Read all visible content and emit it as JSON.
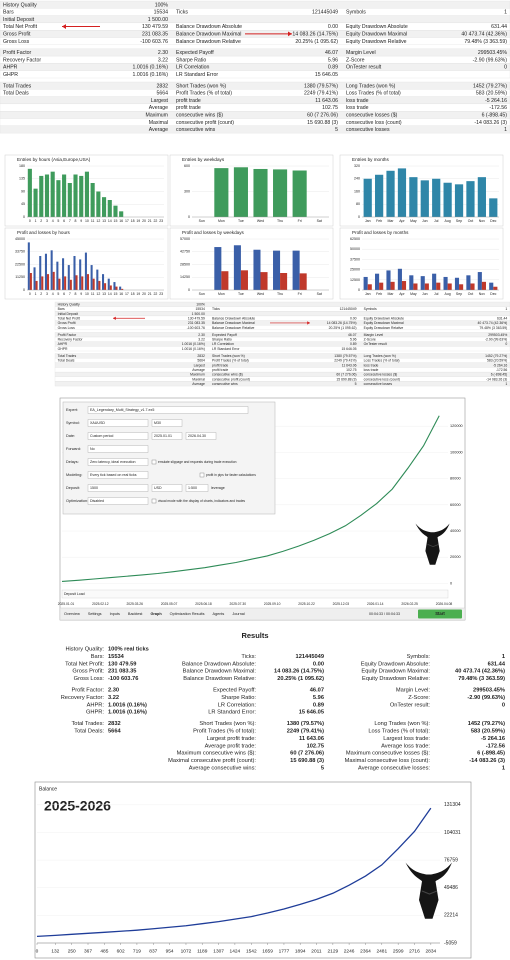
{
  "report": {
    "sections": [
      [
        [
          "History Quality",
          "100%",
          null,
          null,
          null,
          null
        ],
        [
          "Bars",
          "15534",
          "Ticks",
          "121445049",
          "Symbols",
          "1"
        ],
        [
          "Initial Deposit",
          "1 500.00",
          null,
          null,
          null,
          null
        ],
        [
          "Total Net Profit",
          "130 479.59",
          "Balance Drawdown Absolute",
          "0.00",
          "Equity Drawdown Absolute",
          "631.44"
        ],
        [
          "Gross Profit",
          "231 083.35",
          "Balance Drawdown Maximal",
          "14 083.26 (14.75%)",
          "Equity Drawdown Maximal",
          "40 473.74 (42.36%)"
        ],
        [
          "Gross Loss",
          "-100 603.76",
          "Balance Drawdown Relative",
          "20.25% (1 095.62)",
          "Equity Drawdown Relative",
          "79.48% (3 363.59)"
        ]
      ],
      [
        [
          "Profit Factor",
          "2.30",
          "Expected Payoff",
          "46.07",
          "Margin Level",
          "299503.45%"
        ],
        [
          "Recovery Factor",
          "3.22",
          "Sharpe Ratio",
          "5.96",
          "Z-Score",
          "-2.90 (99.63%)"
        ],
        [
          "AHPR",
          "1.0016 (0.16%)",
          "LR Correlation",
          "0.89",
          "OnTester result",
          "0"
        ],
        [
          "GHPR",
          "1.0016 (0.16%)",
          "LR Standard Error",
          "15 646.05",
          null,
          null
        ]
      ],
      [
        [
          "Total Trades",
          "2832",
          "Short Trades (won %)",
          "1380 (79.57%)",
          "Long Trades (won %)",
          "1452 (79.27%)"
        ],
        [
          "Total Deals",
          "5664",
          "Profit Trades (% of total)",
          "2249 (79.41%)",
          "Loss Trades (% of total)",
          "583 (20.59%)"
        ],
        [
          null,
          "Largest",
          "profit trade",
          "11 643.06",
          "loss trade",
          "-5 264.16"
        ],
        [
          null,
          "Average",
          "profit trade",
          "102.75",
          "loss trade",
          "-172.56"
        ],
        [
          null,
          "Maximum",
          "consecutive wins ($)",
          "60 (7 276.06)",
          "consecutive losses ($)",
          "6 (-898.45)"
        ],
        [
          null,
          "Maximal",
          "consecutive profit (count)",
          "15 690.88 (3)",
          "consecutive loss (count)",
          "-14 083.26 (3)"
        ],
        [
          null,
          "Average",
          "consecutive wins",
          "5",
          "consecutive losses",
          "1"
        ]
      ]
    ]
  },
  "charts": [
    {
      "type": "bar",
      "title": "Entries by hours (Asia,Europe,USA)",
      "categories": [
        0,
        1,
        2,
        3,
        4,
        5,
        6,
        7,
        8,
        9,
        10,
        11,
        12,
        13,
        14,
        15,
        16,
        17,
        18,
        19,
        20,
        21,
        22,
        23
      ],
      "series": [
        {
          "color": "#3f9b5c",
          "values": [
            170,
            100,
            145,
            150,
            160,
            130,
            150,
            120,
            150,
            145,
            160,
            120,
            90,
            70,
            60,
            40,
            20,
            0,
            0,
            0,
            0,
            0,
            0,
            0
          ]
        }
      ],
      "ylim": [
        0,
        180
      ],
      "yticks": [
        0,
        45,
        90,
        135,
        180
      ]
    },
    {
      "type": "bar",
      "title": "Entries by weekdays",
      "categories": [
        "Sun",
        "Mon",
        "Tue",
        "Wed",
        "Thu",
        "Fri",
        "Sat"
      ],
      "series": [
        {
          "color": "#3f9b5c",
          "values": [
            0,
            575,
            585,
            565,
            560,
            547,
            0
          ]
        }
      ],
      "ylim": [
        0,
        600
      ],
      "yticks": [
        0,
        300,
        600
      ]
    },
    {
      "type": "bar",
      "title": "Entries by months",
      "categories": [
        "Jan",
        "Feb",
        "Mar",
        "Apr",
        "May",
        "Jun",
        "Jul",
        "Aug",
        "Sep",
        "Oct",
        "Nov",
        "Dec"
      ],
      "series": [
        {
          "color": "#2f86a8",
          "values": [
            240,
            265,
            290,
            305,
            250,
            230,
            240,
            215,
            205,
            225,
            250,
            117
          ]
        }
      ],
      "ylim": [
        0,
        320
      ],
      "yticks": [
        0,
        80,
        160,
        240,
        320
      ]
    },
    {
      "type": "bar",
      "title": "Profit and losses by hours",
      "categories": [
        0,
        1,
        2,
        3,
        4,
        5,
        6,
        7,
        8,
        9,
        10,
        11,
        12,
        13,
        14,
        15,
        16,
        17,
        18,
        19,
        20,
        21,
        22,
        23
      ],
      "series": [
        {
          "color": "#3a5fa8",
          "values": [
            42000,
            20000,
            30000,
            32000,
            35000,
            25000,
            28000,
            22000,
            30000,
            27000,
            33000,
            22000,
            18000,
            14000,
            10000,
            7000,
            3000,
            0,
            0,
            0,
            0,
            0,
            0,
            0
          ]
        },
        {
          "color": "#c0392b",
          "values": [
            15000,
            8000,
            12000,
            14000,
            16000,
            10000,
            12000,
            9000,
            13000,
            12000,
            14000,
            10000,
            8000,
            6000,
            4000,
            3000,
            1000,
            0,
            0,
            0,
            0,
            0,
            0,
            0
          ]
        }
      ],
      "ylim": [
        0,
        45000
      ],
      "yticks": [
        0,
        11250,
        22500,
        33750,
        45000
      ]
    },
    {
      "type": "bar",
      "title": "Profit and losses by weekdays",
      "categories": [
        "Sun",
        "Mon",
        "Tue",
        "Wed",
        "Thu",
        "Fri",
        "Sat"
      ],
      "series": [
        {
          "color": "#3a5fa8",
          "values": [
            0,
            48000,
            50000,
            45000,
            44000,
            44000,
            0
          ]
        },
        {
          "color": "#c0392b",
          "values": [
            0,
            21000,
            22000,
            20000,
            19000,
            18600,
            0
          ]
        }
      ],
      "ylim": [
        0,
        57000
      ],
      "yticks": [
        0,
        14250,
        28500,
        42750,
        57000
      ]
    },
    {
      "type": "bar",
      "title": "Profit and losses by months",
      "categories": [
        "Jan",
        "Feb",
        "Mar",
        "Apr",
        "May",
        "Jun",
        "Jul",
        "Aug",
        "Sep",
        "Oct",
        "Nov",
        "Dec"
      ],
      "series": [
        {
          "color": "#3a5fa8",
          "values": [
            16000,
            20000,
            24000,
            26000,
            18000,
            17000,
            20000,
            16000,
            15000,
            18000,
            22000,
            9000
          ]
        },
        {
          "color": "#c0392b",
          "values": [
            7000,
            9000,
            10000,
            11000,
            8000,
            8000,
            9000,
            8000,
            7000,
            8000,
            10000,
            4000
          ]
        }
      ],
      "ylim": [
        0,
        62500
      ],
      "yticks": [
        0,
        12500,
        25000,
        37500,
        50000,
        62500
      ]
    }
  ],
  "tester": {
    "fields": [
      {
        "label": "Expert:",
        "value": "EA_Legendary_Multi_Strategy_v1.7.ex5"
      },
      {
        "label": "Symbol:",
        "value": "XAUUSD"
      },
      {
        "label": "Date:",
        "value": "Custom period"
      },
      {
        "label": "Forward:",
        "value": "No"
      },
      {
        "label": "Delays:",
        "value": "Zero latency, ideal execution"
      },
      {
        "label": "Modeling:",
        "value": "Every tick based on real ticks"
      },
      {
        "label": "Deposit:",
        "value": "1500"
      },
      {
        "label": "Optimization:",
        "value": "Disabled"
      }
    ],
    "timeframe": "M30",
    "date_from": "2025.01.01",
    "date_to": "2026.04.30",
    "currency": "USD",
    "leverage": "1:500",
    "leverage_label": "leverage",
    "options": [
      "emulate slippage and requests during trade execution",
      "profit in pips for faster calculations",
      "visual mode with the display of charts, indicators and trades"
    ],
    "graph_label": "Deposit Load",
    "xticks": [
      "2025.01.01",
      "2025.02.12",
      "2025.03.26",
      "2025.05.07",
      "2025.06.18",
      "2025.07.30",
      "2025.09.10",
      "2025.10.22",
      "2025.12.03",
      "2026.01.14",
      "2026.02.25",
      "2026.04.08"
    ],
    "ylim": [
      -5000,
      140000
    ],
    "yticks": [
      0,
      20000,
      40000,
      60000,
      80000,
      100000,
      120000
    ],
    "color": "#2e8b57",
    "tabs": [
      "Overview",
      "Settings",
      "Inputs",
      "Backtest",
      "Graph",
      "Optimization Results",
      "Agents",
      "Journal"
    ],
    "status": "00:04:33 / 00:04:33",
    "button": "Start"
  },
  "results": {
    "title": "Results",
    "sections": [
      [
        [
          "History Quality:",
          "100% real ticks",
          null,
          null,
          null,
          null
        ],
        [
          "Bars:",
          "15534",
          "Ticks:",
          "121445049",
          "Symbols:",
          "1"
        ],
        [
          "Total Net Profit:",
          "130 479.59",
          "Balance Drawdown Absolute:",
          "0.00",
          "Equity Drawdown Absolute:",
          "631.44"
        ],
        [
          "Gross Profit:",
          "231 083.35",
          "Balance Drawdown Maximal:",
          "14 083.26 (14.75%)",
          "Equity Drawdown Maximal:",
          "40 473.74 (42.36%)"
        ],
        [
          "Gross Loss:",
          "-100 603.76",
          "Balance Drawdown Relative:",
          "20.25% (1 095.62)",
          "Equity Drawdown Relative:",
          "79.48% (3 363.59)"
        ]
      ],
      [
        [
          "Profit Factor:",
          "2.30",
          "Expected Payoff:",
          "46.07",
          "Margin Level:",
          "299503.45%"
        ],
        [
          "Recovery Factor:",
          "3.22",
          "Sharpe Ratio:",
          "5.96",
          "Z-Score:",
          "-2.90 (99.63%)"
        ],
        [
          "AHPR:",
          "1.0016 (0.16%)",
          "LR Correlation:",
          "0.89",
          "OnTester result:",
          "0"
        ],
        [
          "GHPR:",
          "1.0016 (0.16%)",
          "LR Standard Error:",
          "15 646.05",
          null,
          null
        ]
      ],
      [
        [
          "Total Trades:",
          "2832",
          "Short Trades (won %):",
          "1380 (79.57%)",
          "Long Trades (won %):",
          "1452 (79.27%)"
        ],
        [
          "Total Deals:",
          "5664",
          "Profit Trades (% of total):",
          "2249 (79.41%)",
          "Loss Trades (% of total):",
          "583 (20.59%)"
        ],
        [
          null,
          null,
          "Largest profit trade:",
          "11 643.06",
          "Largest loss trade:",
          "-5 264.16"
        ],
        [
          null,
          null,
          "Average profit trade:",
          "102.75",
          "Average loss trade:",
          "-172.56"
        ],
        [
          null,
          null,
          "Maximum consecutive wins ($):",
          "60 (7 276.06)",
          "Maximum consecutive losses ($):",
          "6 (-898.45)"
        ],
        [
          null,
          null,
          "Maximal consecutive profit (count):",
          "15 690.88 (3)",
          "Maximal consecutive loss (count):",
          "-14 083.26 (3)"
        ],
        [
          null,
          null,
          "Average consecutive wins:",
          "5",
          "Average consecutive losses:",
          "1"
        ]
      ]
    ]
  },
  "balance": {
    "type": "line",
    "title": "Balance",
    "annotation": "2025-2026",
    "color": "#1f3d99",
    "x": [
      0,
      132,
      250,
      367,
      485,
      602,
      719,
      837,
      954,
      1072,
      1189,
      1307,
      1424,
      1542,
      1659,
      1777,
      1894,
      2011,
      2129,
      2246,
      2364,
      2481,
      2599,
      2716,
      2834
    ],
    "values": [
      1500,
      2500,
      3500,
      4500,
      5500,
      6500,
      7600,
      9000,
      10500,
      12000,
      14000,
      16000,
      18500,
      21000,
      24500,
      28500,
      33000,
      38000,
      44000,
      52000,
      61000,
      72000,
      88000,
      105000,
      128000
    ],
    "xlim": [
      0,
      2900
    ],
    "xticks": [
      0,
      132,
      250,
      367,
      485,
      602,
      719,
      837,
      954,
      1072,
      1189,
      1307,
      1424,
      1542,
      1659,
      1777,
      1894,
      2011,
      2129,
      2246,
      2364,
      2481,
      2599,
      2716,
      2834
    ],
    "ylim": [
      -5059,
      140000
    ],
    "yticks": [
      -5059,
      22214,
      49486,
      76759,
      104031,
      131304
    ]
  }
}
